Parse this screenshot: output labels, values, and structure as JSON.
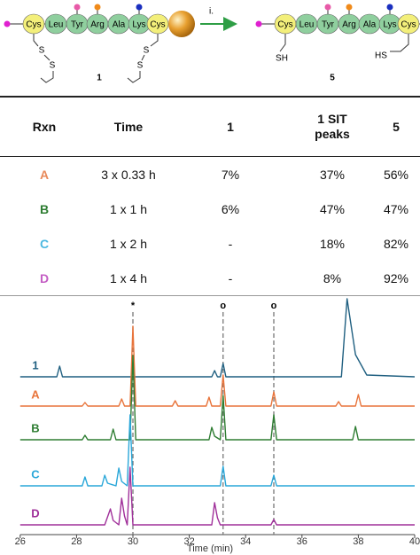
{
  "scheme": {
    "left": {
      "residues": [
        "Cys",
        "Leu",
        "Tyr",
        "Arg",
        "Ala",
        "Lys",
        "Cys"
      ],
      "sulfurs": [
        "S",
        "S",
        "S",
        "S"
      ],
      "label": "1"
    },
    "arrow_label": "i.",
    "right": {
      "residues": [
        "Cys",
        "Leu",
        "Tyr",
        "Arg",
        "Ala",
        "Lys",
        "Cys"
      ],
      "thiols": [
        "SH",
        "HS"
      ],
      "label": "5"
    }
  },
  "table": {
    "header": [
      "Rxn",
      "Time",
      "1",
      "1 SIT peaks",
      "5"
    ],
    "rows": [
      {
        "color": "#e8895a",
        "cells": [
          "A",
          "3 x 0.33 h",
          "7%",
          "37%",
          "56%"
        ]
      },
      {
        "color": "#2e7d32",
        "cells": [
          "B",
          "1 x 1 h",
          "6%",
          "47%",
          "47%"
        ]
      },
      {
        "color": "#4cb8e0",
        "cells": [
          "C",
          "1 x 2 h",
          "-",
          "18%",
          "82%"
        ]
      },
      {
        "color": "#c45ec4",
        "cells": [
          "D",
          "1 x 4 h",
          "-",
          "8%",
          "92%"
        ]
      }
    ]
  },
  "chart_data": {
    "type": "line",
    "xlabel": "Time (min)",
    "xlim": [
      26,
      40
    ],
    "xticks": [
      26,
      28,
      30,
      32,
      34,
      36,
      38,
      40
    ],
    "markers": [
      {
        "x": 30,
        "label": "*"
      },
      {
        "x": 33.2,
        "label": "o"
      },
      {
        "x": 35,
        "label": "o"
      }
    ],
    "series": [
      {
        "name": "1",
        "color": "#1f5f80",
        "x": [
          26,
          27.3,
          27.4,
          27.5,
          32.8,
          32.9,
          33.0,
          33.1,
          33.2,
          33.3,
          37.4,
          37.6,
          37.9,
          38.3,
          40
        ],
        "values": [
          0,
          0,
          12,
          0,
          0,
          7,
          0,
          0,
          15,
          0,
          0,
          88,
          25,
          2,
          0
        ]
      },
      {
        "name": "A",
        "color": "#e8743b",
        "x": [
          26,
          28.2,
          28.3,
          28.4,
          29.5,
          29.6,
          29.7,
          29.9,
          30.0,
          30.1,
          31.4,
          31.5,
          31.6,
          32.6,
          32.7,
          32.8,
          33.1,
          33.2,
          33.3,
          34.9,
          35.0,
          35.1,
          37.2,
          37.3,
          37.4,
          37.9,
          38.0,
          38.1,
          40
        ],
        "values": [
          0,
          0,
          4,
          0,
          0,
          8,
          0,
          0,
          90,
          0,
          0,
          6,
          0,
          0,
          10,
          0,
          0,
          35,
          0,
          0,
          16,
          0,
          0,
          5,
          0,
          0,
          13,
          0,
          0
        ]
      },
      {
        "name": "B",
        "color": "#2e7d32",
        "x": [
          26,
          28.2,
          28.3,
          28.4,
          29.2,
          29.3,
          29.4,
          29.9,
          30.0,
          30.1,
          32.7,
          32.8,
          32.9,
          33.1,
          33.2,
          33.3,
          34.9,
          35.0,
          35.1,
          37.8,
          37.9,
          38.0,
          40
        ],
        "values": [
          0,
          0,
          5,
          0,
          0,
          12,
          0,
          0,
          95,
          0,
          0,
          14,
          4,
          0,
          50,
          0,
          0,
          28,
          0,
          0,
          15,
          0,
          0
        ]
      },
      {
        "name": "C",
        "color": "#2aa7d9",
        "x": [
          26,
          28.2,
          28.3,
          28.4,
          28.9,
          29.0,
          29.1,
          29.4,
          29.5,
          29.6,
          29.8,
          29.9,
          30.0,
          33.1,
          33.2,
          33.3,
          34.9,
          35.0,
          35.1,
          40
        ],
        "values": [
          0,
          0,
          10,
          0,
          0,
          12,
          3,
          0,
          20,
          5,
          0,
          80,
          0,
          0,
          22,
          0,
          0,
          12,
          0,
          0
        ]
      },
      {
        "name": "D",
        "color": "#a0309a",
        "x": [
          26,
          29.0,
          29.2,
          29.3,
          29.5,
          29.6,
          29.7,
          29.8,
          29.9,
          30.0,
          32.8,
          32.9,
          33.0,
          33.1,
          34.9,
          35.0,
          35.1,
          40
        ],
        "values": [
          0,
          0,
          18,
          5,
          0,
          30,
          10,
          0,
          65,
          0,
          0,
          25,
          8,
          0,
          0,
          6,
          0,
          0
        ]
      }
    ]
  }
}
